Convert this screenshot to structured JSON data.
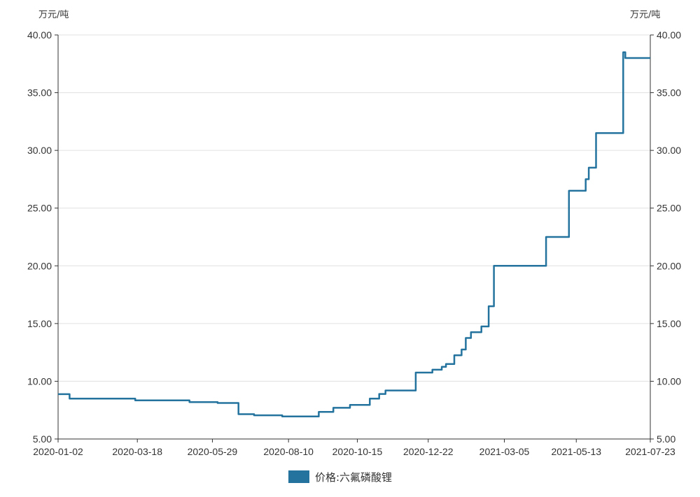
{
  "chart_data": {
    "type": "line",
    "title": "",
    "y_unit_left": "万元/吨",
    "y_unit_right": "万元/吨",
    "ylim": [
      5,
      40
    ],
    "y_ticks": [
      "5.00",
      "10.00",
      "15.00",
      "20.00",
      "25.00",
      "30.00",
      "35.00",
      "40.00"
    ],
    "x_ticks": [
      "2020-01-02",
      "2020-03-18",
      "2020-05-29",
      "2020-08-10",
      "2020-10-15",
      "2020-12-22",
      "2021-03-05",
      "2021-05-13",
      "2021-07-23"
    ],
    "grid": true,
    "legend_position": "bottom",
    "step": true,
    "series": [
      {
        "name": "价格:六氟磷酸锂",
        "color": "#23739e",
        "points": [
          [
            "2020-01-02",
            8.88
          ],
          [
            "2020-01-13",
            8.5
          ],
          [
            "2020-03-16",
            8.35
          ],
          [
            "2020-05-07",
            8.2
          ],
          [
            "2020-06-03",
            8.12
          ],
          [
            "2020-06-23",
            7.15
          ],
          [
            "2020-07-08",
            7.05
          ],
          [
            "2020-08-04",
            6.95
          ],
          [
            "2020-09-08",
            7.35
          ],
          [
            "2020-09-22",
            7.7
          ],
          [
            "2020-10-08",
            7.95
          ],
          [
            "2020-10-27",
            8.5
          ],
          [
            "2020-11-05",
            8.9
          ],
          [
            "2020-11-11",
            9.2
          ],
          [
            "2020-12-10",
            10.75
          ],
          [
            "2020-12-26",
            11.0
          ],
          [
            "2021-01-04",
            11.25
          ],
          [
            "2021-01-08",
            11.5
          ],
          [
            "2021-01-16",
            12.25
          ],
          [
            "2021-01-23",
            12.75
          ],
          [
            "2021-01-27",
            13.75
          ],
          [
            "2021-02-01",
            14.25
          ],
          [
            "2021-02-11",
            14.75
          ],
          [
            "2021-02-18",
            16.5
          ],
          [
            "2021-02-23",
            20.0
          ],
          [
            "2021-04-14",
            22.5
          ],
          [
            "2021-05-06",
            26.5
          ],
          [
            "2021-05-22",
            27.5
          ],
          [
            "2021-05-25",
            28.5
          ],
          [
            "2021-06-01",
            31.5
          ],
          [
            "2021-06-27",
            38.5
          ],
          [
            "2021-06-29",
            38.0
          ],
          [
            "2021-07-23",
            38.0
          ]
        ]
      }
    ]
  }
}
